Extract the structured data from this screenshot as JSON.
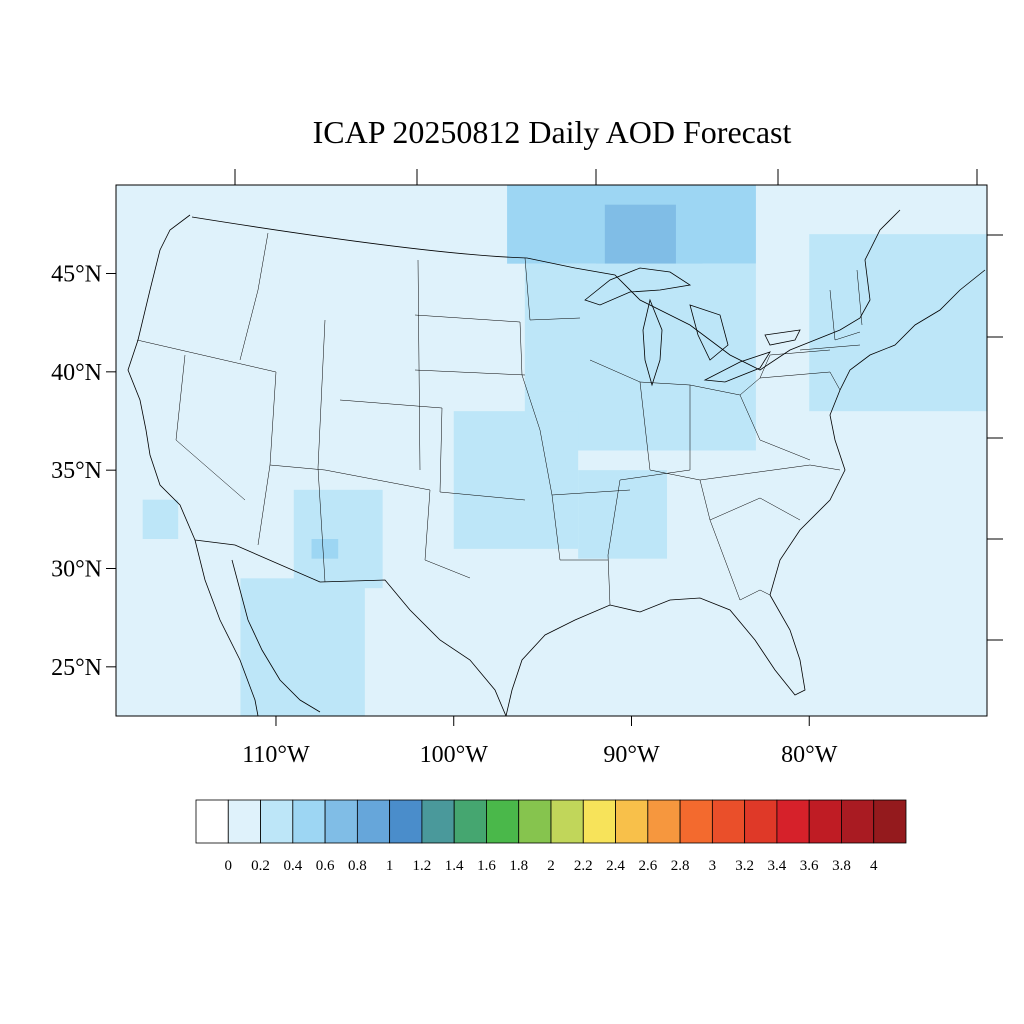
{
  "title": "ICAP 20250812 Daily AOD Forecast",
  "map": {
    "lon_range": [
      -119,
      -70
    ],
    "lat_range": [
      22.5,
      49.5
    ],
    "background_color": "#dff2fb",
    "lat_ticks": [
      {
        "lat": 45,
        "label": "45°N"
      },
      {
        "lat": 40,
        "label": "40°N"
      },
      {
        "lat": 35,
        "label": "35°N"
      },
      {
        "lat": 30,
        "label": "30°N"
      },
      {
        "lat": 25,
        "label": "25°N"
      }
    ],
    "lon_ticks": [
      {
        "lon": -110,
        "label": "110°W"
      },
      {
        "lon": -100,
        "label": "100°W"
      },
      {
        "lon": -90,
        "label": "90°W"
      },
      {
        "lon": -80,
        "label": "80°W"
      }
    ],
    "aod_regions": [
      {
        "name": "northern-minnesota-ontario",
        "level": 0.5,
        "lon": [
          -97,
          -83
        ],
        "lat": [
          45.5,
          49.5
        ]
      },
      {
        "name": "lake-superior-peak",
        "level": 0.7,
        "lon": [
          -91.5,
          -87.5
        ],
        "lat": [
          45.5,
          48.5
        ]
      },
      {
        "name": "wisconsin-michigan",
        "level": 0.5,
        "lon": [
          -92,
          -86
        ],
        "lat": [
          41.5,
          45.5
        ]
      },
      {
        "name": "upper-midwest",
        "level": 0.3,
        "lon": [
          -96,
          -83
        ],
        "lat": [
          36,
          45.5
        ]
      },
      {
        "name": "central-plains",
        "level": 0.3,
        "lon": [
          -100,
          -93
        ],
        "lat": [
          31,
          38
        ]
      },
      {
        "name": "arkansas-mississippi",
        "level": 0.3,
        "lon": [
          -93,
          -88
        ],
        "lat": [
          30.5,
          35
        ]
      },
      {
        "name": "northeast",
        "level": 0.3,
        "lon": [
          -80,
          -70
        ],
        "lat": [
          38,
          47
        ]
      },
      {
        "name": "new-mexico",
        "level": 0.3,
        "lon": [
          -109,
          -104
        ],
        "lat": [
          29,
          34
        ]
      },
      {
        "name": "new-mexico-peak",
        "level": 0.5,
        "lon": [
          -108,
          -106.5
        ],
        "lat": [
          30.5,
          31.5
        ]
      },
      {
        "name": "arizona-sonora",
        "level": 0.3,
        "lon": [
          -112,
          -105
        ],
        "lat": [
          22.5,
          29.5
        ]
      },
      {
        "name": "southern-california",
        "level": 0.3,
        "lon": [
          -117.5,
          -115.5
        ],
        "lat": [
          31.5,
          33.5
        ]
      }
    ]
  },
  "colorbar": {
    "colors": [
      "#ffffff",
      "#dff2fb",
      "#bde6f8",
      "#9dd6f3",
      "#80bde6",
      "#66a6da",
      "#4a8dcb",
      "#4a999b",
      "#45a670",
      "#4ab84a",
      "#86c44e",
      "#c1d65a",
      "#f7e35a",
      "#f8c04a",
      "#f6973e",
      "#f36a2e",
      "#ea4f2a",
      "#df3928",
      "#d6212a",
      "#bf1c24",
      "#a91b22",
      "#941a1d"
    ],
    "labels": [
      "0",
      "0.2",
      "0.4",
      "0.6",
      "0.8",
      "1",
      "1.2",
      "1.4",
      "1.6",
      "1.8",
      "2",
      "2.2",
      "2.4",
      "2.6",
      "2.8",
      "3",
      "3.2",
      "3.4",
      "3.6",
      "3.8",
      "4"
    ],
    "step": 0.2
  }
}
